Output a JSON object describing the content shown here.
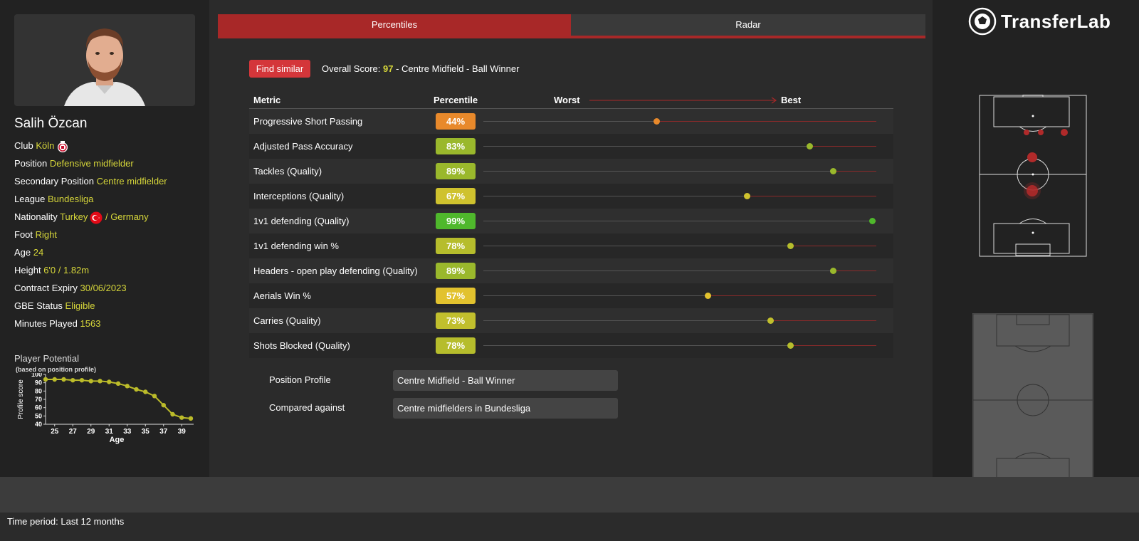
{
  "player": {
    "name": "Salih Özcan",
    "info": [
      {
        "label": "Club",
        "value": "Köln",
        "icon": "club-crest-icon"
      },
      {
        "label": "Position",
        "value": "Defensive midfielder"
      },
      {
        "label": "Secondary Position",
        "value": "Centre midfielder"
      },
      {
        "label": "League",
        "value": "Bundesliga"
      },
      {
        "label": "Nationality",
        "value": "Turkey",
        "icon": "turkey-flag-icon",
        "extra": "/ Germany"
      },
      {
        "label": "Foot",
        "value": "Right"
      },
      {
        "label": "Age",
        "value": "24"
      },
      {
        "label": "Height",
        "value": "6'0 / 1.82m"
      },
      {
        "label": "Contract Expiry",
        "value": "30/06/2023"
      },
      {
        "label": "GBE Status",
        "value": "Eligible"
      },
      {
        "label": "Minutes Played",
        "value": "1563"
      }
    ]
  },
  "potential": {
    "title": "Player Potential",
    "subtitle": "(based on position profile)"
  },
  "chart_data": {
    "type": "line",
    "x": [
      24,
      25,
      26,
      27,
      28,
      29,
      30,
      31,
      32,
      33,
      34,
      35,
      36,
      37,
      38,
      39,
      40
    ],
    "values": [
      94,
      94,
      94,
      93,
      93,
      92,
      92,
      91,
      89,
      86,
      82,
      79,
      74,
      63,
      52,
      48,
      47
    ],
    "xlabel": "Age",
    "ylabel": "Profile score",
    "ylim": [
      40,
      100
    ],
    "yticks": [
      40,
      50,
      60,
      70,
      80,
      90,
      100
    ],
    "xticks": [
      25,
      27,
      29,
      31,
      33,
      35,
      37,
      39
    ],
    "color": "#bcbc2a"
  },
  "tabs": [
    {
      "label": "Percentiles",
      "active": true
    },
    {
      "label": "Radar",
      "active": false
    }
  ],
  "find_similar_label": "Find similar",
  "overall": {
    "prefix": "Overall Score: ",
    "score": "97",
    "suffix": " - Centre Midfield - Ball Winner"
  },
  "metrics_header": {
    "metric": "Metric",
    "percentile": "Percentile",
    "worst": "Worst",
    "best": "Best"
  },
  "metrics": [
    {
      "name": "Progressive Short Passing",
      "label": "44%",
      "value": 44,
      "color": "#e8892b"
    },
    {
      "name": "Adjusted Pass Accuracy",
      "label": "83%",
      "value": 83,
      "color": "#9ab82c"
    },
    {
      "name": "Tackles (Quality)",
      "label": "89%",
      "value": 89,
      "color": "#9ab82c"
    },
    {
      "name": "Interceptions (Quality)",
      "label": "67%",
      "value": 67,
      "color": "#cfc22e"
    },
    {
      "name": "1v1 defending (Quality)",
      "label": "99%",
      "value": 99,
      "color": "#4fb82c"
    },
    {
      "name": "1v1 defending win %",
      "label": "78%",
      "value": 78,
      "color": "#b6bd2c"
    },
    {
      "name": "Headers - open play defending (Quality)",
      "label": "89%",
      "value": 89,
      "color": "#9ab82c"
    },
    {
      "name": "Aerials Win %",
      "label": "57%",
      "value": 57,
      "color": "#e2c22e"
    },
    {
      "name": "Carries (Quality)",
      "label": "73%",
      "value": 73,
      "color": "#c1bf2d"
    },
    {
      "name": "Shots Blocked (Quality)",
      "label": "78%",
      "value": 78,
      "color": "#b6bd2c"
    }
  ],
  "profile": {
    "position_profile_label": "Position Profile",
    "position_profile_value": "Centre Midfield - Ball Winner",
    "compared_label": "Compared against",
    "compared_value": "Centre midfielders in Bundesliga"
  },
  "brand": {
    "name": "TransferLab"
  },
  "footer": {
    "time_period": "Time period: Last 12 months"
  }
}
